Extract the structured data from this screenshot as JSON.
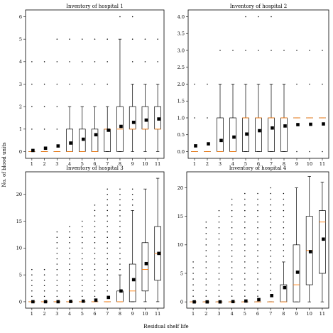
{
  "figure": {
    "ylabel": "No. of blood units",
    "xlabel": "Residual shelf life"
  },
  "colors": {
    "box_edge": "#000000",
    "median": "#ff7f0e",
    "mean_marker": "#000000",
    "flier": "#000000"
  },
  "chart_data": [
    {
      "type": "box",
      "title": "Inventory of hospital 1",
      "categories": [
        "1",
        "2",
        "3",
        "4",
        "5",
        "6",
        "7",
        "8",
        "9",
        "10",
        "11"
      ],
      "ylim": [
        -0.3,
        6.3
      ],
      "yticks": [
        0,
        1,
        2,
        3,
        4,
        5,
        6
      ],
      "grid": false,
      "stats": [
        {
          "q1": 0,
          "median": 0,
          "q3": 0,
          "whislo": 0,
          "whishi": 0,
          "mean": 0.05,
          "fliers": [
            1,
            2,
            3,
            4
          ]
        },
        {
          "q1": 0,
          "median": 0,
          "q3": 0,
          "whislo": 0,
          "whishi": 0,
          "mean": 0.15,
          "fliers": [
            1,
            2,
            3,
            4
          ]
        },
        {
          "q1": 0,
          "median": 0,
          "q3": 0,
          "whislo": 0,
          "whishi": 0,
          "mean": 0.25,
          "fliers": [
            1,
            2,
            3,
            4,
            5
          ]
        },
        {
          "q1": 0,
          "median": 0,
          "q3": 1,
          "whislo": 0,
          "whishi": 2,
          "mean": 0.38,
          "fliers": [
            3,
            4,
            5
          ]
        },
        {
          "q1": 0,
          "median": 0,
          "q3": 1,
          "whislo": 0,
          "whishi": 2,
          "mean": 0.55,
          "fliers": [
            3,
            4,
            5
          ]
        },
        {
          "q1": 0,
          "median": 0,
          "q3": 1,
          "whislo": 0,
          "whishi": 2,
          "mean": 0.75,
          "fliers": [
            3,
            4,
            5
          ]
        },
        {
          "q1": 0,
          "median": 1,
          "q3": 1,
          "whislo": 0,
          "whishi": 2,
          "mean": 0.95,
          "fliers": [
            3,
            4,
            5
          ]
        },
        {
          "q1": 0,
          "median": 1,
          "q3": 2,
          "whislo": 0,
          "whishi": 5,
          "mean": 1.12,
          "fliers": [
            6
          ]
        },
        {
          "q1": 1,
          "median": 1,
          "q3": 2,
          "whislo": 0,
          "whishi": 3,
          "mean": 1.3,
          "fliers": [
            4,
            5,
            6
          ]
        },
        {
          "q1": 1,
          "median": 1,
          "q3": 2,
          "whislo": 0,
          "whishi": 3,
          "mean": 1.4,
          "fliers": [
            4,
            5
          ]
        },
        {
          "q1": 1,
          "median": 1,
          "q3": 2,
          "whislo": 0,
          "whishi": 3,
          "mean": 1.45,
          "fliers": [
            4,
            5
          ]
        }
      ]
    },
    {
      "type": "box",
      "title": "Inventory of hospital 2",
      "categories": [
        "1",
        "2",
        "3",
        "4",
        "5",
        "6",
        "7",
        "8",
        "9",
        "10",
        "11"
      ],
      "ylim": [
        -0.2,
        4.2
      ],
      "yticks": [
        0.0,
        0.5,
        1.0,
        1.5,
        2.0,
        2.5,
        3.0,
        3.5,
        4.0
      ],
      "grid": false,
      "stats": [
        {
          "q1": 0,
          "median": 0,
          "q3": 0,
          "whislo": 0,
          "whishi": 0,
          "mean": 0.17,
          "fliers": [
            1,
            2
          ]
        },
        {
          "q1": 0,
          "median": 0,
          "q3": 0,
          "whislo": 0,
          "whishi": 0,
          "mean": 0.23,
          "fliers": [
            1,
            2
          ]
        },
        {
          "q1": 0,
          "median": 0,
          "q3": 1,
          "whislo": 0,
          "whishi": 2,
          "mean": 0.33,
          "fliers": [
            3
          ]
        },
        {
          "q1": 0,
          "median": 0,
          "q3": 1,
          "whislo": 0,
          "whishi": 2,
          "mean": 0.43,
          "fliers": [
            3
          ]
        },
        {
          "q1": 0,
          "median": 1,
          "q3": 1,
          "whislo": 0,
          "whishi": 2,
          "mean": 0.52,
          "fliers": [
            3,
            4
          ]
        },
        {
          "q1": 0,
          "median": 1,
          "q3": 1,
          "whislo": 0,
          "whishi": 2,
          "mean": 0.62,
          "fliers": [
            3,
            4
          ]
        },
        {
          "q1": 0,
          "median": 1,
          "q3": 1,
          "whislo": 0,
          "whishi": 2,
          "mean": 0.7,
          "fliers": [
            3,
            4
          ]
        },
        {
          "q1": 0,
          "median": 1,
          "q3": 1,
          "whislo": 0,
          "whishi": 2,
          "mean": 0.76,
          "fliers": [
            3
          ]
        },
        {
          "q1": 1,
          "median": 1,
          "q3": 1,
          "whislo": 1,
          "whishi": 1,
          "mean": 0.8,
          "fliers": [
            0,
            2,
            3
          ]
        },
        {
          "q1": 1,
          "median": 1,
          "q3": 1,
          "whislo": 1,
          "whishi": 1,
          "mean": 0.81,
          "fliers": [
            0,
            2,
            3
          ]
        },
        {
          "q1": 1,
          "median": 1,
          "q3": 1,
          "whislo": 1,
          "whishi": 1,
          "mean": 0.82,
          "fliers": [
            0,
            2,
            3
          ]
        }
      ]
    },
    {
      "type": "box",
      "title": "Inventory of hospital 3",
      "categories": [
        "1",
        "2",
        "3",
        "4",
        "5",
        "6",
        "7",
        "8",
        "9",
        "10",
        "11"
      ],
      "ylim": [
        -1.2,
        24.2
      ],
      "yticks": [
        0,
        5,
        10,
        15,
        20
      ],
      "grid": false,
      "stats": [
        {
          "q1": 0,
          "median": 0,
          "q3": 0,
          "whislo": 0,
          "whishi": 0,
          "mean": 0.0,
          "fliers": [
            1,
            2,
            3,
            4,
            5,
            6
          ]
        },
        {
          "q1": 0,
          "median": 0,
          "q3": 0,
          "whislo": 0,
          "whishi": 0,
          "mean": 0.0,
          "fliers": [
            1,
            2,
            3,
            4,
            5,
            6
          ]
        },
        {
          "q1": 0,
          "median": 0,
          "q3": 0,
          "whislo": 0,
          "whishi": 0,
          "mean": 0.0,
          "fliers": [
            1,
            2,
            3,
            4,
            5,
            6,
            7,
            8,
            9,
            10,
            11,
            12,
            13
          ]
        },
        {
          "q1": 0,
          "median": 0,
          "q3": 0,
          "whislo": 0,
          "whishi": 0,
          "mean": 0.05,
          "fliers": [
            1,
            2,
            3,
            4,
            5,
            6,
            7,
            8,
            9,
            10,
            11,
            12,
            13,
            14
          ]
        },
        {
          "q1": 0,
          "median": 0,
          "q3": 0,
          "whislo": 0,
          "whishi": 0,
          "mean": 0.1,
          "fliers": [
            1,
            2,
            3,
            4,
            5,
            6,
            7,
            8,
            9,
            10,
            11,
            12,
            13,
            14,
            15
          ]
        },
        {
          "q1": 0,
          "median": 0,
          "q3": 0,
          "whislo": 0,
          "whishi": 0,
          "mean": 0.3,
          "fliers": [
            1,
            2,
            3,
            4,
            5,
            6,
            7,
            8,
            9,
            10,
            11,
            12,
            13,
            14,
            15,
            16,
            17,
            18
          ]
        },
        {
          "q1": 0,
          "median": 0,
          "q3": 0,
          "whislo": 0,
          "whishi": 0,
          "mean": 0.8,
          "fliers": [
            1,
            2,
            3,
            4,
            5,
            6,
            7,
            8,
            9,
            10,
            11,
            12,
            13,
            14,
            15,
            16,
            17,
            18,
            19,
            20,
            21
          ]
        },
        {
          "q1": 0,
          "median": 0,
          "q3": 2,
          "whislo": 0,
          "whishi": 5,
          "mean": 2.0,
          "fliers": [
            6,
            7,
            8,
            9,
            10,
            11,
            12,
            13,
            14,
            15,
            16,
            17,
            18,
            19,
            20,
            21
          ]
        },
        {
          "q1": 0,
          "median": 2,
          "q3": 7,
          "whislo": 0,
          "whishi": 17,
          "mean": 4.1,
          "fliers": [
            18,
            19,
            20,
            21
          ]
        },
        {
          "q1": 2,
          "median": 6,
          "q3": 11,
          "whislo": 0,
          "whishi": 21,
          "mean": 7.1,
          "fliers": []
        },
        {
          "q1": 4,
          "median": 9,
          "q3": 14,
          "whislo": 0,
          "whishi": 23,
          "mean": 9.0,
          "fliers": []
        }
      ]
    },
    {
      "type": "box",
      "title": "Inventory of hospital 4",
      "categories": [
        "1",
        "2",
        "3",
        "4",
        "5",
        "6",
        "7",
        "8",
        "9",
        "10",
        "11"
      ],
      "ylim": [
        -1.1,
        22.8
      ],
      "yticks": [
        0,
        5,
        10,
        15,
        20
      ],
      "grid": false,
      "stats": [
        {
          "q1": 0,
          "median": 0,
          "q3": 0,
          "whislo": 0,
          "whishi": 0,
          "mean": 0.0,
          "fliers": [
            1,
            2,
            3,
            4,
            5,
            6,
            7
          ]
        },
        {
          "q1": 0,
          "median": 0,
          "q3": 0,
          "whislo": 0,
          "whishi": 0,
          "mean": 0.0,
          "fliers": [
            1,
            2,
            3,
            4,
            5,
            6,
            7,
            8,
            9,
            10,
            11,
            12,
            13,
            14
          ]
        },
        {
          "q1": 0,
          "median": 0,
          "q3": 0,
          "whislo": 0,
          "whishi": 0,
          "mean": 0.0,
          "fliers": [
            1,
            2,
            3,
            4,
            5,
            6,
            7,
            8,
            9,
            10,
            11,
            12,
            13,
            14,
            15,
            16
          ]
        },
        {
          "q1": 0,
          "median": 0,
          "q3": 0,
          "whislo": 0,
          "whishi": 0,
          "mean": 0.05,
          "fliers": [
            1,
            2,
            3,
            4,
            5,
            6,
            7,
            8,
            9,
            10,
            11,
            12,
            13,
            14,
            15,
            16,
            17,
            18
          ]
        },
        {
          "q1": 0,
          "median": 0,
          "q3": 0,
          "whislo": 0,
          "whishi": 0,
          "mean": 0.15,
          "fliers": [
            1,
            2,
            3,
            4,
            5,
            6,
            7,
            8,
            9,
            10,
            11,
            12,
            13,
            14,
            15,
            16,
            17,
            18,
            19
          ]
        },
        {
          "q1": 0,
          "median": 0,
          "q3": 0,
          "whislo": 0,
          "whishi": 0,
          "mean": 0.4,
          "fliers": [
            1,
            2,
            3,
            4,
            5,
            6,
            7,
            8,
            9,
            10,
            11,
            12,
            13,
            14,
            15,
            16,
            17,
            18,
            19
          ]
        },
        {
          "q1": 0,
          "median": 0,
          "q3": 0,
          "whislo": 0,
          "whishi": 0,
          "mean": 1.1,
          "fliers": [
            1,
            2,
            3,
            4,
            5,
            6,
            7,
            8,
            9,
            10,
            11,
            12,
            13,
            14,
            15,
            16,
            17,
            18,
            19,
            20
          ]
        },
        {
          "q1": 0,
          "median": 0,
          "q3": 3,
          "whislo": 0,
          "whishi": 7,
          "mean": 2.5,
          "fliers": [
            8,
            9,
            10,
            11,
            12,
            13,
            14,
            15,
            16,
            17,
            18,
            19
          ]
        },
        {
          "q1": 0,
          "median": 3,
          "q3": 10,
          "whislo": 0,
          "whishi": 20,
          "mean": 5.2,
          "fliers": []
        },
        {
          "q1": 3,
          "median": 9,
          "q3": 15,
          "whislo": 0,
          "whishi": 22,
          "mean": 8.8,
          "fliers": []
        },
        {
          "q1": 5,
          "median": 14,
          "q3": 16,
          "whislo": 0,
          "whishi": 21,
          "mean": 11.0,
          "fliers": []
        }
      ]
    }
  ]
}
